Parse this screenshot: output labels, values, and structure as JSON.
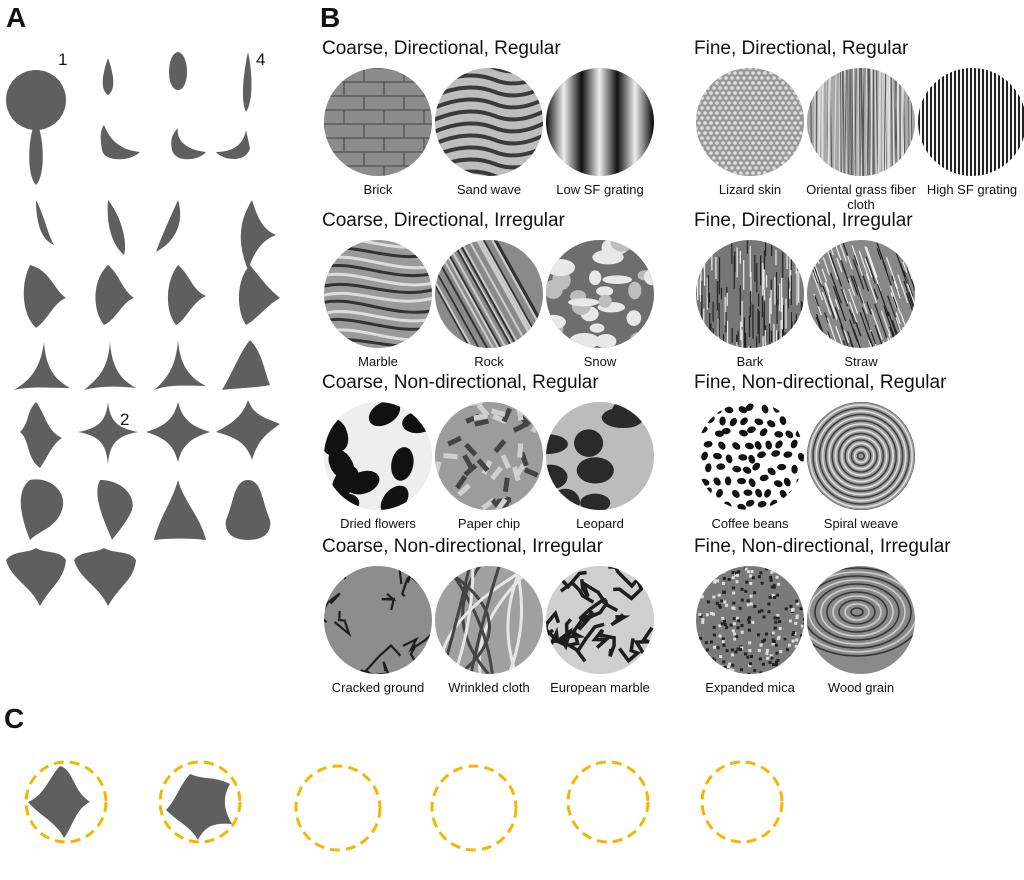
{
  "panels": {
    "a": "A",
    "b": "B",
    "c": "C"
  },
  "shape_numbers": [
    "1",
    "4",
    "2"
  ],
  "groups": [
    {
      "title": "Coarse, Directional, Regular",
      "items": [
        {
          "label": "Brick",
          "tex": "brick"
        },
        {
          "label": "Sand wave",
          "tex": "sand"
        },
        {
          "label": "Low SF grating",
          "tex": "lowsf"
        }
      ]
    },
    {
      "title": "Fine, Directional, Regular",
      "items": [
        {
          "label": "Lizard skin",
          "tex": "lizard"
        },
        {
          "label": "Oriental grass fiber cloth",
          "tex": "grass"
        },
        {
          "label": "High SF grating",
          "tex": "highsf"
        }
      ]
    },
    {
      "title": "Coarse, Directional, Irregular",
      "items": [
        {
          "label": "Marble",
          "tex": "marble"
        },
        {
          "label": "Rock",
          "tex": "rock"
        },
        {
          "label": "Snow",
          "tex": "snow"
        }
      ]
    },
    {
      "title": "Fine, Directional, Irregular",
      "items": [
        {
          "label": "Bark",
          "tex": "bark"
        },
        {
          "label": "Straw",
          "tex": "straw"
        }
      ]
    },
    {
      "title": "Coarse, Non-directional, Regular",
      "items": [
        {
          "label": "Dried flowers",
          "tex": "flowers"
        },
        {
          "label": "Paper chip",
          "tex": "paper"
        },
        {
          "label": "Leopard",
          "tex": "leopard"
        }
      ]
    },
    {
      "title": "Fine, Non-directional, Regular",
      "items": [
        {
          "label": "Coffee beans",
          "tex": "coffee"
        },
        {
          "label": "Spiral weave",
          "tex": "spiral"
        }
      ]
    },
    {
      "title": "Coarse, Non-directional, Irregular",
      "items": [
        {
          "label": "Cracked ground",
          "tex": "cracked"
        },
        {
          "label": "Wrinkled cloth",
          "tex": "cloth"
        },
        {
          "label": "European marble",
          "tex": "euromarble"
        }
      ]
    },
    {
      "title": "Fine, Non-directional, Irregular",
      "items": [
        {
          "label": "Expanded mica",
          "tex": "mica"
        },
        {
          "label": "Wood grain",
          "tex": "wood"
        }
      ]
    }
  ],
  "colors": {
    "shape": "#5f5f5f",
    "highlight": "#f2b705"
  }
}
